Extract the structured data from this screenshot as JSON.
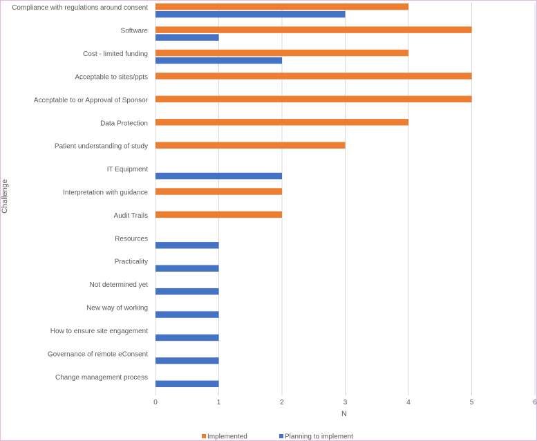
{
  "chart_data": {
    "type": "bar",
    "orientation": "horizontal",
    "title": "",
    "xlabel": "N",
    "ylabel": "Challenge",
    "xlim": [
      0,
      6
    ],
    "xticks": [
      0,
      1,
      2,
      3,
      4,
      5,
      6
    ],
    "grid": true,
    "legend_position": "bottom",
    "categories": [
      "Compliance with regulations around consent",
      "Software",
      "Cost - limited funding",
      "Acceptable to sites/ppts",
      "Acceptable to or Approval of Sponsor",
      "Data Protection",
      "Patient understanding of study",
      "IT Equipment",
      "Interpretation with guidance",
      "Audit Trails",
      "Resources",
      "Practicality",
      "Not determined yet",
      "New way of working",
      "How to ensure site engagement",
      "Governance of remote eConsent",
      "Change management process"
    ],
    "series": [
      {
        "name": "Implemented",
        "color": "#ed7d31",
        "values": [
          4,
          5,
          4,
          5,
          5,
          4,
          3,
          0,
          2,
          2,
          0,
          0,
          0,
          0,
          0,
          0,
          0
        ]
      },
      {
        "name": "Planning to implement",
        "color": "#4472c4",
        "values": [
          3,
          1,
          2,
          0,
          0,
          0,
          0,
          2,
          0,
          0,
          1,
          1,
          1,
          1,
          1,
          1,
          1
        ]
      }
    ]
  },
  "colors": {
    "grid": "#d9d9d9",
    "text": "#595959",
    "frame": "#e7b7dd"
  }
}
